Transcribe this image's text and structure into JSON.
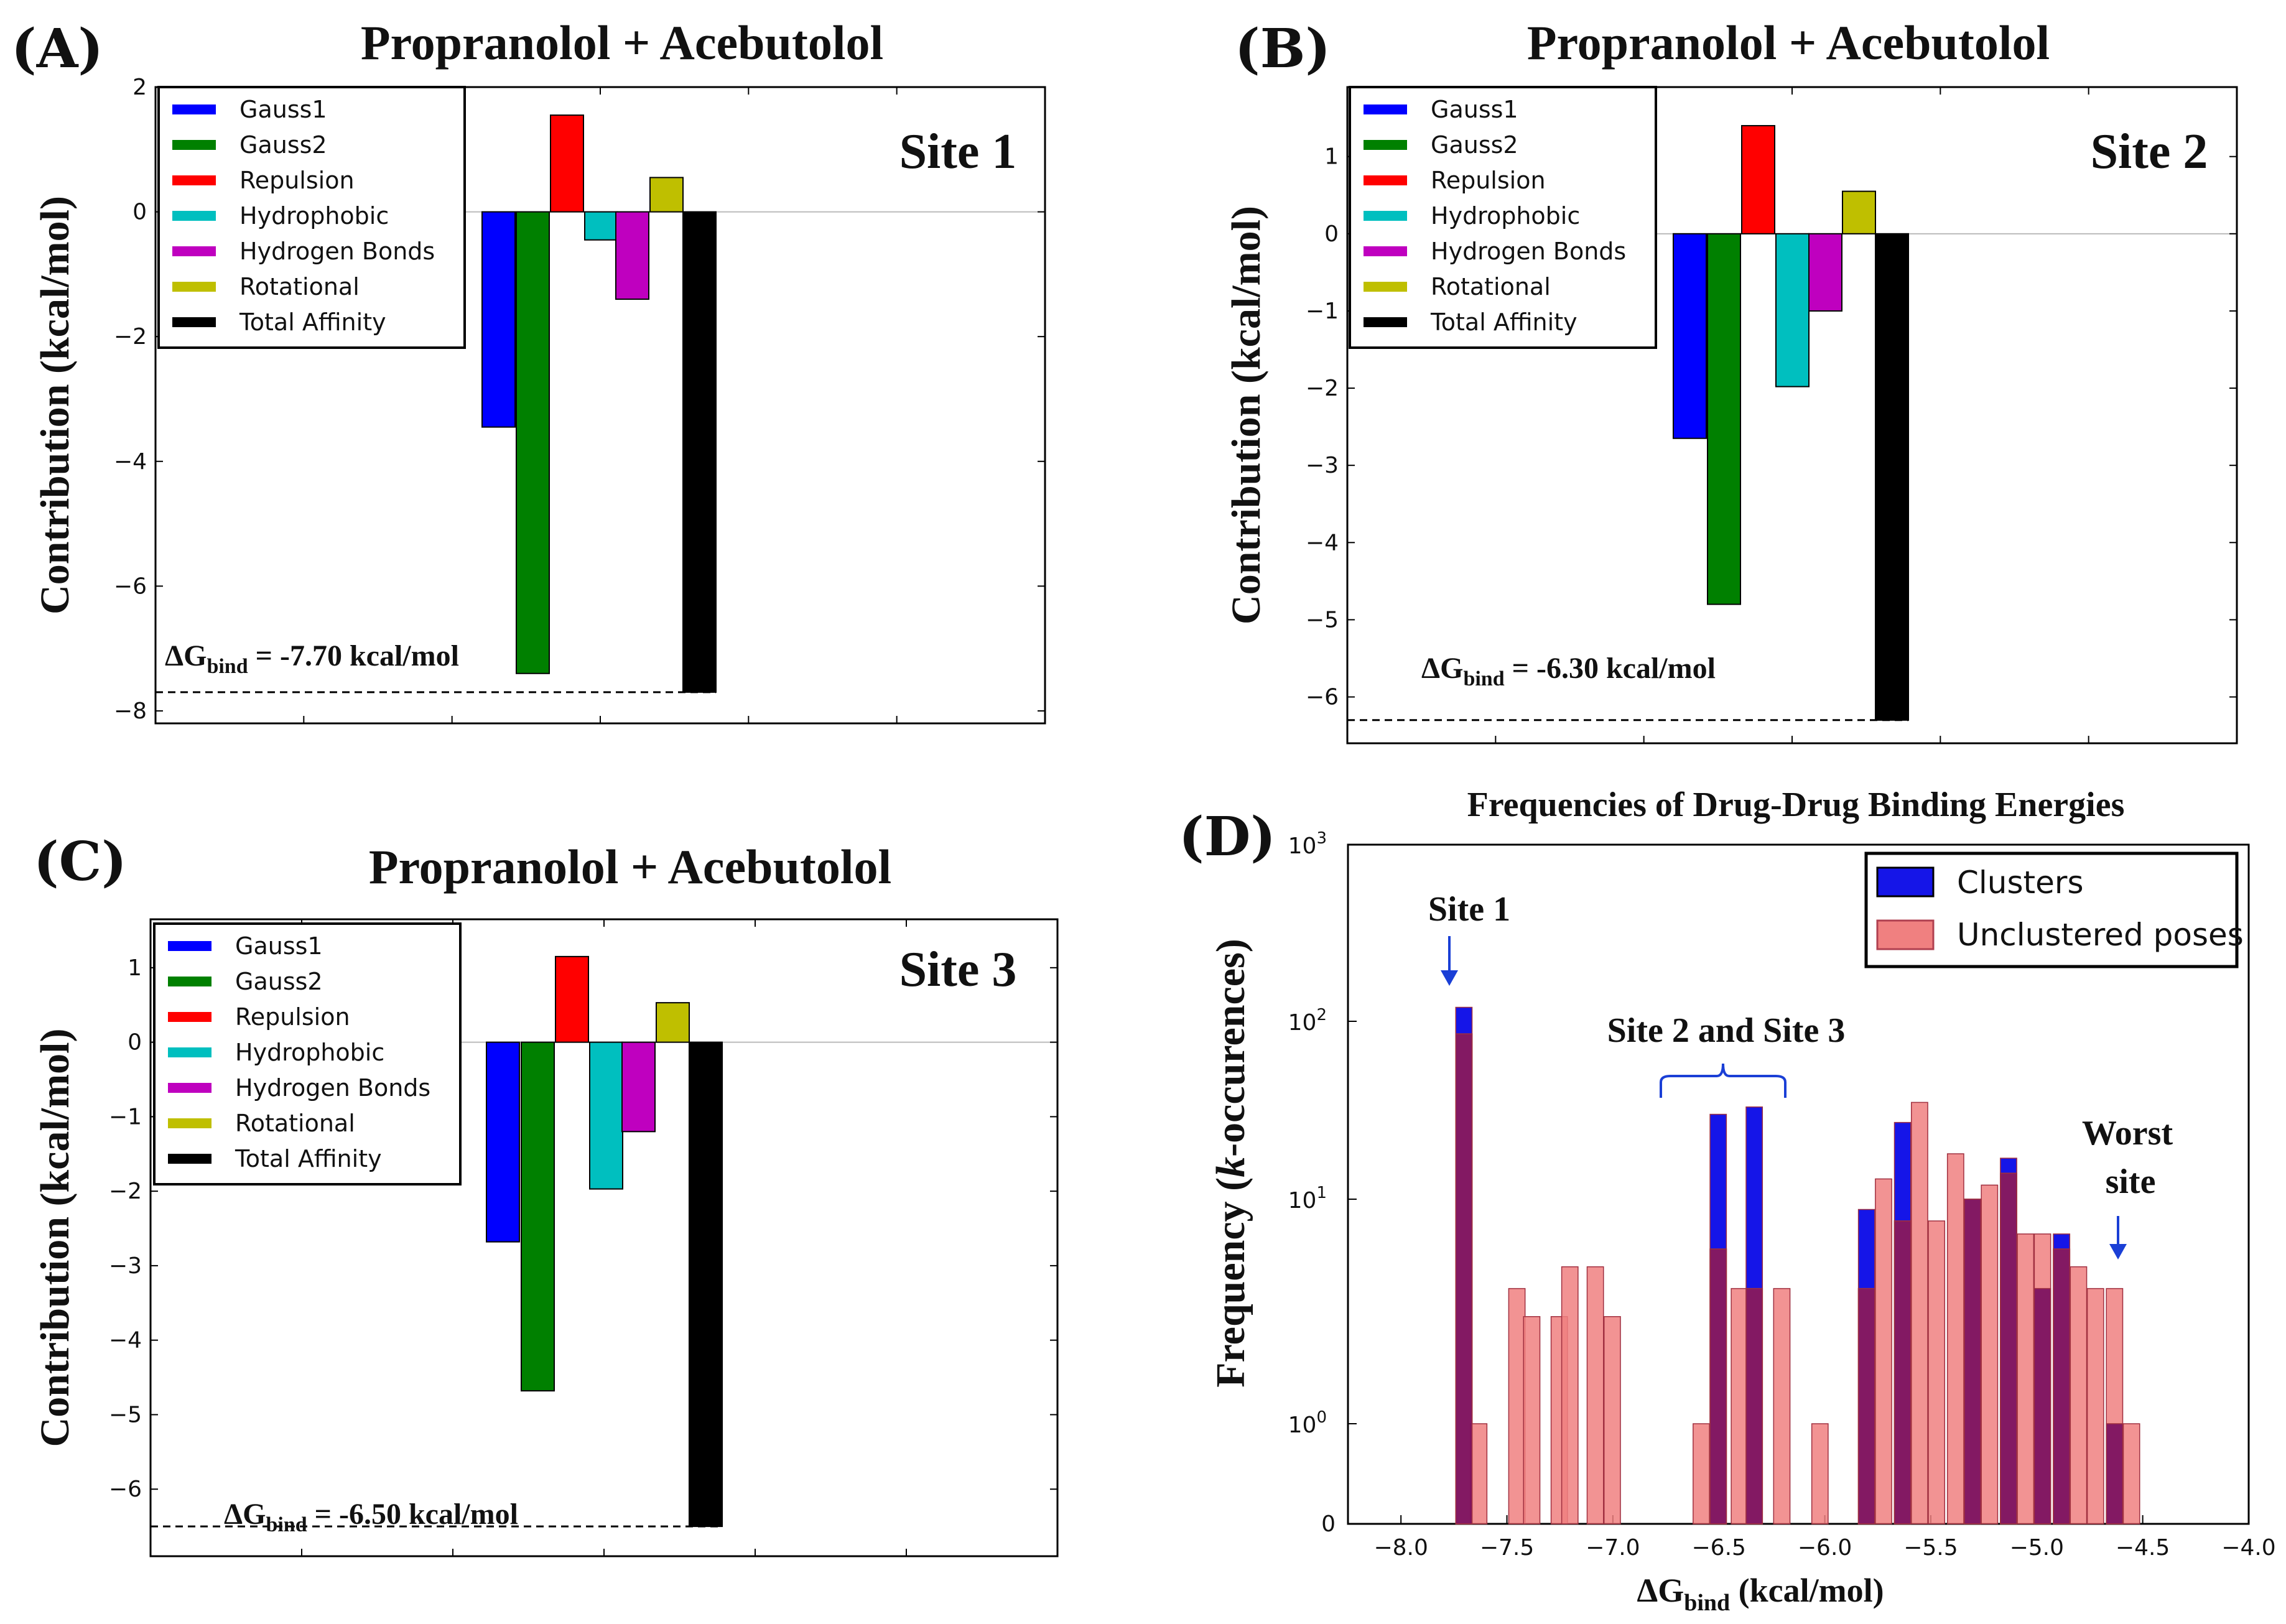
{
  "colors": {
    "gauss1": "#0000ff",
    "gauss2": "#008000",
    "repulsion": "#ff0000",
    "hydrophobic": "#00bfbf",
    "hbonds": "#bf00bf",
    "rotational": "#bfbf00",
    "total": "#000000",
    "clusters": "#1515e8",
    "unclustered": "#f08080",
    "overlap": "#7a0f5e",
    "annotation_arrow": "#1a3fd6"
  },
  "chart_data": [
    {
      "panel": "(A)",
      "type": "bar",
      "title": "Propranolol + Acebutolol",
      "site_label": "Site 1",
      "ylabel": "Contribution  (kcal/mol)",
      "ylim": [
        -8.2,
        2
      ],
      "yticks": [
        2,
        0,
        -2,
        -4,
        -6,
        -8
      ],
      "categories": [
        "Gauss1",
        "Gauss2",
        "Repulsion",
        "Hydrophobic",
        "Hydrogen Bonds",
        "Rotational",
        "Total Affinity"
      ],
      "values": [
        -3.45,
        -7.4,
        1.55,
        -0.45,
        -1.4,
        0.55,
        -7.7
      ],
      "dg_label": "-7.70 kcal/mol",
      "dg_value": -7.7
    },
    {
      "panel": "(B)",
      "type": "bar",
      "title": "Propranolol + Acebutolol",
      "site_label": "Site 2",
      "ylabel": "Contribution  (kcal/mol)",
      "ylim": [
        -6.6,
        1.9
      ],
      "yticks": [
        1,
        0,
        -1,
        -2,
        -3,
        -4,
        -5,
        -6
      ],
      "categories": [
        "Gauss1",
        "Gauss2",
        "Repulsion",
        "Hydrophobic",
        "Hydrogen Bonds",
        "Rotational",
        "Total Affinity"
      ],
      "values": [
        -2.65,
        -4.8,
        1.4,
        -1.98,
        -1.0,
        0.55,
        -6.3
      ],
      "dg_label": "-6.30 kcal/mol",
      "dg_value": -6.3
    },
    {
      "panel": "(C)",
      "type": "bar",
      "title": "Propranolol + Acebutolol",
      "site_label": "Site 3",
      "ylabel": "Contribution  (kcal/mol)",
      "ylim": [
        -6.9,
        1.65
      ],
      "yticks": [
        1,
        0,
        -1,
        -2,
        -3,
        -4,
        -5,
        -6
      ],
      "categories": [
        "Gauss1",
        "Gauss2",
        "Repulsion",
        "Hydrophobic",
        "Hydrogen Bonds",
        "Rotational",
        "Total Affinity"
      ],
      "values": [
        -2.68,
        -4.68,
        1.15,
        -1.97,
        -1.2,
        0.53,
        -6.5
      ],
      "dg_label": "-6.50 kcal/mol",
      "dg_value": -6.5
    },
    {
      "panel": "(D)",
      "type": "bar",
      "subtype": "histogram-symlog",
      "title": "Frequencies of Drug-Drug Binding Energies",
      "ylabel_pre": "Frequency (",
      "ylabel_k": "k",
      "ylabel_post": "-occurences)",
      "xlabel": "(kcal/mol)",
      "xlim": [
        -8.25,
        -4.0
      ],
      "xticks": [
        -8.0,
        -7.5,
        -7.0,
        -6.5,
        -6.0,
        -5.5,
        -5.0,
        -4.5,
        -4.0
      ],
      "yticks": [
        "10^3",
        "10^2",
        "10^1",
        "10^0",
        "0"
      ],
      "bin_width": 0.083,
      "series": [
        {
          "name": "Clusters",
          "x": [
            -7.7,
            -6.5,
            -6.33,
            -5.8,
            -5.63,
            -5.3,
            -5.13,
            -4.97,
            -4.88,
            -4.63
          ],
          "values": [
            120,
            30,
            33,
            9,
            27,
            10,
            17,
            4,
            7,
            1
          ]
        },
        {
          "name": "Unclustered poses",
          "x": [
            -7.7,
            -7.63,
            -7.45,
            -7.38,
            -7.25,
            -7.2,
            -7.08,
            -7.0,
            -6.58,
            -6.5,
            -6.4,
            -6.33,
            -6.2,
            -6.02,
            -5.8,
            -5.72,
            -5.63,
            -5.55,
            -5.47,
            -5.38,
            -5.3,
            -5.22,
            -5.13,
            -5.05,
            -4.97,
            -4.88,
            -4.8,
            -4.72,
            -4.63,
            -4.55
          ],
          "values": [
            85,
            1,
            4,
            3,
            3,
            5,
            5,
            3,
            1,
            6,
            4,
            4,
            4,
            1,
            4,
            13,
            8,
            35,
            8,
            18,
            10,
            12,
            14,
            7,
            7,
            6,
            5,
            4,
            4,
            1
          ]
        }
      ],
      "annotations": {
        "site1": "Site 1",
        "site23": "Site 2 and Site 3",
        "worst_line1": "Worst",
        "worst_line2": "site"
      }
    }
  ]
}
